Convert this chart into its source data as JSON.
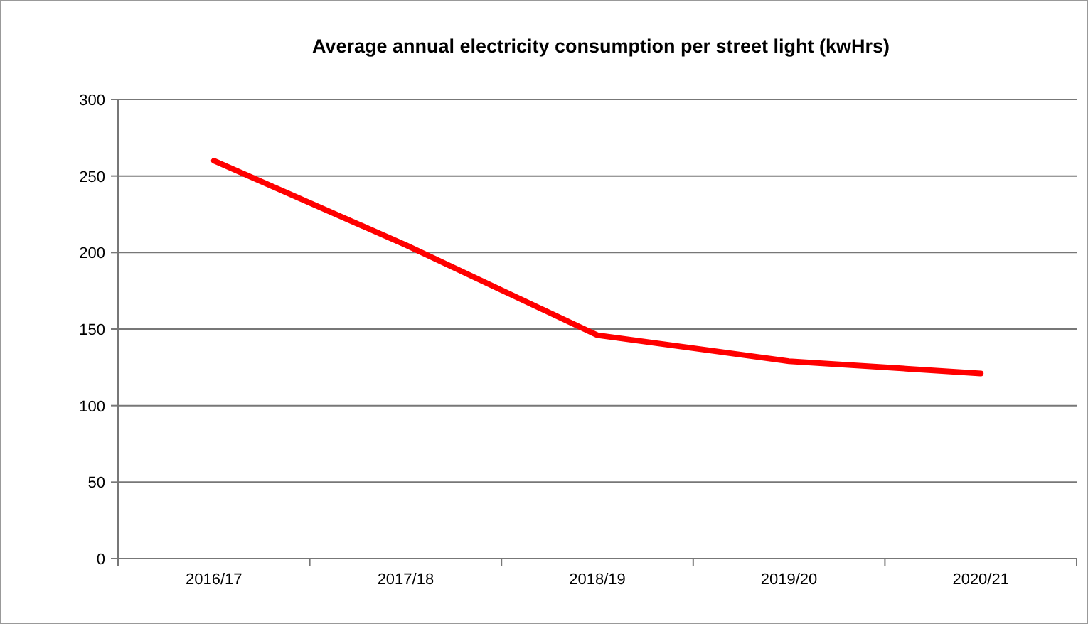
{
  "chart_data": {
    "type": "line",
    "title": "Average annual electricity consumption per street light (kwHrs)",
    "categories": [
      "2016/17",
      "2017/18",
      "2018/19",
      "2019/20",
      "2020/21"
    ],
    "series": [
      {
        "color": "#ff0000",
        "values": [
          260,
          205,
          146,
          129,
          121
        ]
      }
    ],
    "ylim": [
      0,
      300
    ],
    "yticks": [
      0,
      50,
      100,
      150,
      200,
      250,
      300
    ],
    "grid": "y",
    "marker": "none",
    "line_style": "solid"
  }
}
